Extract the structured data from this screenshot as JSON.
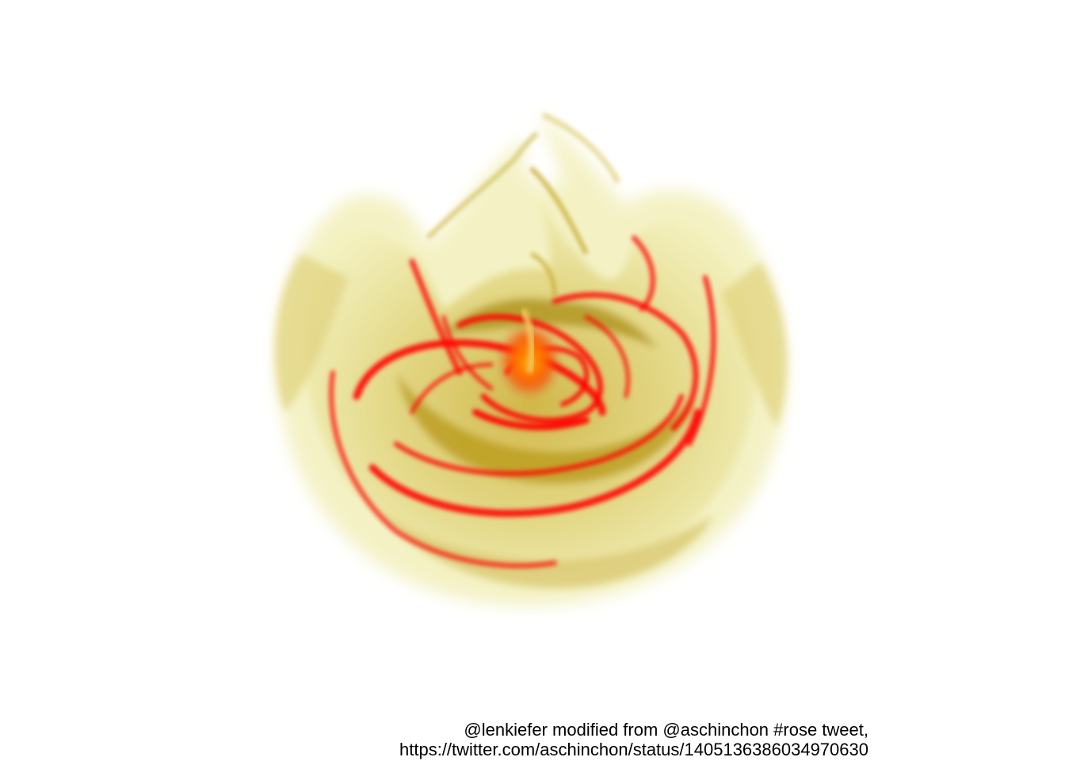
{
  "artwork": {
    "subject": "rose",
    "colors": {
      "background": "#ffffff",
      "pale": "#f2f0b8",
      "mid": "#b8a020",
      "dark": "#8a6a00",
      "red": "#ff0000",
      "core": "#ff9a00"
    }
  },
  "caption": {
    "line1": "@lenkiefer modified from @aschinchon #rose tweet,",
    "line2": "https://twitter.com/aschinchon/status/1405136386034970630"
  }
}
